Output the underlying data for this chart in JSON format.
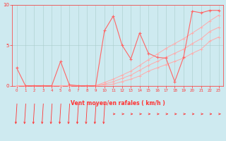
{
  "x": [
    0,
    1,
    2,
    3,
    4,
    5,
    6,
    7,
    8,
    9,
    10,
    11,
    12,
    13,
    14,
    15,
    16,
    17,
    18,
    19,
    20,
    21,
    22,
    23
  ],
  "y_rafales": [
    2.2,
    0.0,
    0.0,
    0.0,
    0.0,
    3.0,
    0.1,
    0.0,
    0.0,
    0.0,
    6.8,
    8.6,
    5.0,
    3.3,
    6.5,
    4.0,
    3.5,
    3.4,
    0.5,
    3.5,
    9.2,
    9.0,
    9.3,
    9.3
  ],
  "y_upper": [
    0.0,
    0.0,
    0.0,
    0.0,
    0.0,
    0.0,
    0.0,
    0.0,
    0.0,
    0.0,
    0.4,
    0.8,
    1.3,
    1.8,
    2.5,
    3.2,
    3.9,
    4.6,
    5.2,
    5.8,
    6.5,
    7.2,
    8.0,
    8.7
  ],
  "y_mean": [
    0.0,
    0.0,
    0.0,
    0.0,
    0.0,
    0.0,
    0.0,
    0.0,
    0.0,
    0.0,
    0.2,
    0.5,
    0.9,
    1.3,
    1.9,
    2.5,
    3.0,
    3.5,
    4.0,
    4.5,
    5.2,
    5.8,
    6.7,
    7.2
  ],
  "y_lower": [
    0.0,
    0.0,
    0.0,
    0.0,
    0.0,
    0.0,
    0.0,
    0.0,
    0.0,
    0.0,
    0.1,
    0.2,
    0.5,
    0.8,
    1.2,
    1.8,
    2.2,
    2.6,
    3.0,
    3.4,
    4.0,
    4.5,
    5.5,
    6.0
  ],
  "color_main": "#FF6666",
  "color_light": "#FFAAAA",
  "bg_color": "#CEEAF0",
  "grid_color": "#AACCCC",
  "axis_color": "#FF3333",
  "red_line": "#FF0000",
  "xlabel": "Vent moyen/en rafales ( km/h )",
  "ylim": [
    0,
    10
  ],
  "xlim": [
    -0.5,
    23.5
  ],
  "yticks": [
    0,
    5,
    10
  ],
  "xticks": [
    0,
    1,
    2,
    3,
    4,
    5,
    6,
    7,
    8,
    9,
    10,
    11,
    12,
    13,
    14,
    15,
    16,
    17,
    18,
    19,
    20,
    21,
    22,
    23
  ],
  "arrows_down": [
    0,
    1,
    2,
    3,
    4,
    5,
    6,
    7,
    8,
    9,
    10
  ],
  "arrows_right": [
    11,
    12,
    13,
    14,
    15,
    16,
    17,
    18,
    19,
    20,
    21,
    22,
    23
  ]
}
